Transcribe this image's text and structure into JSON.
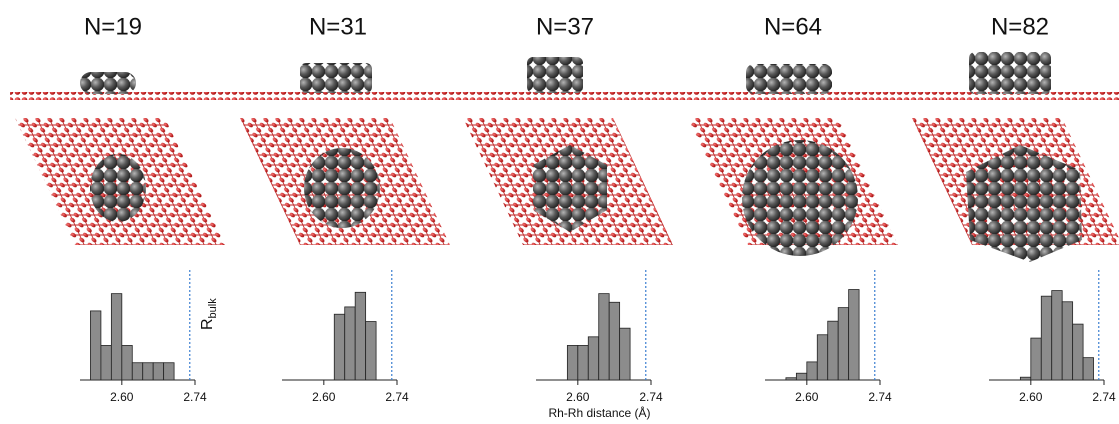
{
  "chart_data": [
    {
      "type": "histogram",
      "title": "N=19",
      "bins": [
        2.54,
        2.56,
        2.58,
        2.6,
        2.62,
        2.64,
        2.66,
        2.68,
        2.7
      ],
      "values": [
        4,
        2,
        5,
        2,
        1,
        1,
        1,
        1
      ],
      "color": "#8c8c8c",
      "xlim": [
        2.52,
        2.74
      ],
      "ylim": [
        0,
        5.5
      ],
      "xticks": [
        {
          "value": 2.6,
          "label": "2.60"
        },
        {
          "value": 2.74,
          "label": "2.74"
        }
      ],
      "reference_line": 2.73,
      "reference_color": "#3a7fd0",
      "annotation": "R",
      "annotation_sub": "bulk"
    },
    {
      "type": "histogram",
      "title": "N=31",
      "bins": [
        2.62,
        2.64,
        2.66,
        2.68,
        2.7
      ],
      "values": [
        9,
        10,
        12,
        8
      ],
      "color": "#8c8c8c",
      "xlim": [
        2.52,
        2.74
      ],
      "ylim": [
        0,
        13
      ],
      "xticks": [
        {
          "value": 2.6,
          "label": "2.60"
        },
        {
          "value": 2.74,
          "label": "2.74"
        }
      ],
      "reference_line": 2.73,
      "reference_color": "#3a7fd0"
    },
    {
      "type": "histogram",
      "title": "N=37",
      "bins": [
        2.58,
        2.6,
        2.62,
        2.64,
        2.66,
        2.68,
        2.7
      ],
      "values": [
        4,
        4,
        5,
        10,
        9,
        6
      ],
      "color": "#8c8c8c",
      "xlim": [
        2.52,
        2.74
      ],
      "ylim": [
        0,
        11
      ],
      "xticks": [
        {
          "value": 2.6,
          "label": "2.60"
        },
        {
          "value": 2.74,
          "label": "2.74"
        }
      ],
      "reference_line": 2.73,
      "reference_color": "#3a7fd0",
      "xlabel": "Rh-Rh distance (Å)"
    },
    {
      "type": "histogram",
      "title": "N=64",
      "bins": [
        2.56,
        2.58,
        2.6,
        2.62,
        2.64,
        2.66,
        2.68,
        2.7
      ],
      "values": [
        1,
        3,
        8,
        20,
        26,
        32,
        40
      ],
      "color": "#8c8c8c",
      "xlim": [
        2.52,
        2.74
      ],
      "ylim": [
        0,
        42
      ],
      "xticks": [
        {
          "value": 2.6,
          "label": "2.60"
        },
        {
          "value": 2.74,
          "label": "2.74"
        }
      ],
      "reference_line": 2.73,
      "reference_color": "#3a7fd0"
    },
    {
      "type": "histogram",
      "title": "N=82",
      "bins": [
        2.58,
        2.6,
        2.62,
        2.64,
        2.66,
        2.68,
        2.7,
        2.72
      ],
      "values": [
        1,
        15,
        30,
        32,
        28,
        20,
        8
      ],
      "color": "#8c8c8c",
      "xlim": [
        2.52,
        2.74
      ],
      "ylim": [
        0,
        34
      ],
      "xticks": [
        {
          "value": 2.6,
          "label": "2.60"
        },
        {
          "value": 2.74,
          "label": "2.74"
        }
      ],
      "reference_line": 2.73,
      "reference_color": "#3a7fd0"
    }
  ]
}
